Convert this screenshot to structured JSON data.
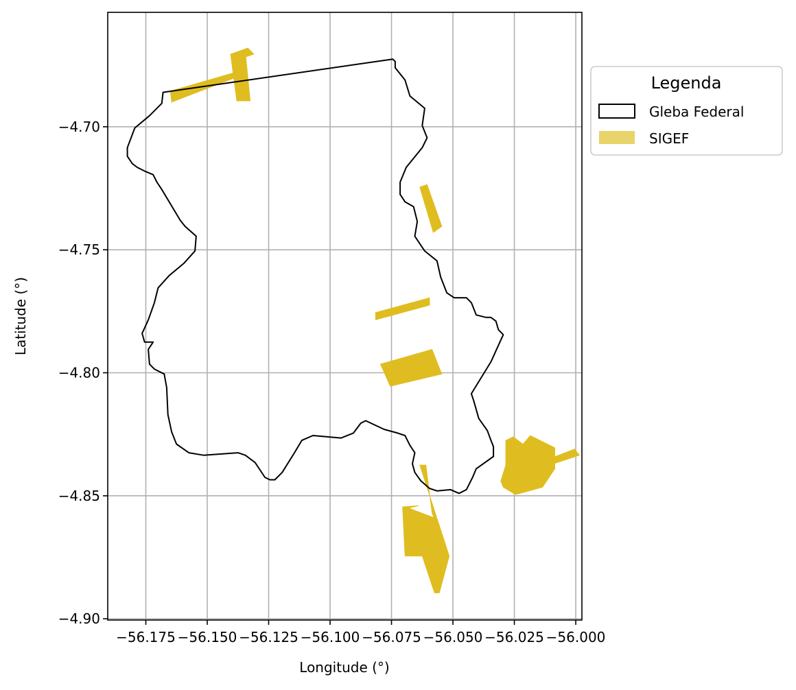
{
  "map": {
    "xlabel": "Longitude (°)",
    "ylabel": "Latitude (°)",
    "xlim": [
      -56.1905,
      -55.9975
    ],
    "ylim": [
      -4.9005,
      -4.6535
    ],
    "x_ticks": [
      {
        "value": -56.175,
        "label": "−56.175"
      },
      {
        "value": -56.15,
        "label": "−56.150"
      },
      {
        "value": -56.125,
        "label": "−56.125"
      },
      {
        "value": -56.1,
        "label": "−56.100"
      },
      {
        "value": -56.075,
        "label": "−56.075"
      },
      {
        "value": -56.05,
        "label": "−56.050"
      },
      {
        "value": -56.025,
        "label": "−56.025"
      },
      {
        "value": -56.0,
        "label": "−56.000"
      }
    ],
    "y_ticks": [
      {
        "value": -4.7,
        "label": "−4.70"
      },
      {
        "value": -4.75,
        "label": "−4.75"
      },
      {
        "value": -4.8,
        "label": "−4.80"
      },
      {
        "value": -4.85,
        "label": "−4.85"
      },
      {
        "value": -4.9,
        "label": "−4.90"
      }
    ],
    "grid": true,
    "legend": {
      "title": "Legenda",
      "placement": "outside-right-top",
      "entries": [
        {
          "label": "Gleba Federal",
          "style": "outline",
          "edge_color": "#000000",
          "fill_color": "#ffffff"
        },
        {
          "label": "SIGEF",
          "style": "fill",
          "fill_color": "#e8d46a"
        }
      ]
    },
    "colors": {
      "gleba_edge": "#000000",
      "sigef_fill": "#dfbd20",
      "grid": "#b0b0b0"
    }
  },
  "chart_data": {
    "type": "map",
    "layers": [
      {
        "name": "Gleba Federal",
        "geometry": "polygon",
        "coordinates": [
          [
            -56.168,
            -4.686
          ],
          [
            -56.0745,
            -4.6725
          ],
          [
            -56.0735,
            -4.6735
          ],
          [
            -56.0735,
            -4.676
          ],
          [
            -56.0695,
            -4.681
          ],
          [
            -56.0675,
            -4.6875
          ],
          [
            -56.0645,
            -4.69
          ],
          [
            -56.0615,
            -4.6925
          ],
          [
            -56.0625,
            -4.6995
          ],
          [
            -56.0605,
            -4.7045
          ],
          [
            -56.0625,
            -4.7085
          ],
          [
            -56.069,
            -4.7165
          ],
          [
            -56.0715,
            -4.7225
          ],
          [
            -56.0715,
            -4.7275
          ],
          [
            -56.0695,
            -4.7305
          ],
          [
            -56.066,
            -4.7325
          ],
          [
            -56.0645,
            -4.7385
          ],
          [
            -56.0655,
            -4.7445
          ],
          [
            -56.0615,
            -4.7505
          ],
          [
            -56.0565,
            -4.7545
          ],
          [
            -56.055,
            -4.761
          ],
          [
            -56.0525,
            -4.7675
          ],
          [
            -56.0495,
            -4.7695
          ],
          [
            -56.046,
            -4.7695
          ],
          [
            -56.0445,
            -4.7695
          ],
          [
            -56.0425,
            -4.7715
          ],
          [
            -56.0405,
            -4.7765
          ],
          [
            -56.0365,
            -4.7775
          ],
          [
            -56.0345,
            -4.7775
          ],
          [
            -56.0325,
            -4.779
          ],
          [
            -56.0315,
            -4.7825
          ],
          [
            -56.0295,
            -4.7845
          ],
          [
            -56.0345,
            -4.7955
          ],
          [
            -56.0425,
            -4.8085
          ],
          [
            -56.0415,
            -4.8115
          ],
          [
            -56.0395,
            -4.8185
          ],
          [
            -56.036,
            -4.8235
          ],
          [
            -56.0345,
            -4.8275
          ],
          [
            -56.0335,
            -4.83
          ],
          [
            -56.0335,
            -4.834
          ],
          [
            -56.0405,
            -4.839
          ],
          [
            -56.042,
            -4.8425
          ],
          [
            -56.0445,
            -4.8475
          ],
          [
            -56.0475,
            -4.849
          ],
          [
            -56.051,
            -4.8475
          ],
          [
            -56.0565,
            -4.848
          ],
          [
            -56.0595,
            -4.847
          ],
          [
            -56.063,
            -4.844
          ],
          [
            -56.0655,
            -4.8405
          ],
          [
            -56.0665,
            -4.837
          ],
          [
            -56.0655,
            -4.8325
          ],
          [
            -56.0675,
            -4.8295
          ],
          [
            -56.0695,
            -4.8255
          ],
          [
            -56.0725,
            -4.8245
          ],
          [
            -56.078,
            -4.823
          ],
          [
            -56.0855,
            -4.8195
          ],
          [
            -56.0875,
            -4.8205
          ],
          [
            -56.0905,
            -4.8245
          ],
          [
            -56.0955,
            -4.8265
          ],
          [
            -56.107,
            -4.8255
          ],
          [
            -56.1115,
            -4.8275
          ],
          [
            -56.1145,
            -4.8325
          ],
          [
            -56.1195,
            -4.8405
          ],
          [
            -56.1225,
            -4.8435
          ],
          [
            -56.1245,
            -4.8435
          ],
          [
            -56.1265,
            -4.8425
          ],
          [
            -56.1305,
            -4.8365
          ],
          [
            -56.1345,
            -4.8335
          ],
          [
            -56.1375,
            -4.8325
          ],
          [
            -56.1515,
            -4.8335
          ],
          [
            -56.1575,
            -4.8325
          ],
          [
            -56.1625,
            -4.829
          ],
          [
            -56.1645,
            -4.824
          ],
          [
            -56.166,
            -4.817
          ],
          [
            -56.1665,
            -4.806
          ],
          [
            -56.1675,
            -4.8005
          ],
          [
            -56.1715,
            -4.7985
          ],
          [
            -56.1735,
            -4.7965
          ],
          [
            -56.174,
            -4.7905
          ],
          [
            -56.172,
            -4.7875
          ],
          [
            -56.1755,
            -4.7875
          ],
          [
            -56.1765,
            -4.784
          ],
          [
            -56.174,
            -4.7785
          ],
          [
            -56.1715,
            -4.7715
          ],
          [
            -56.17,
            -4.7655
          ],
          [
            -56.1655,
            -4.7605
          ],
          [
            -56.1595,
            -4.7555
          ],
          [
            -56.155,
            -4.7505
          ],
          [
            -56.1545,
            -4.7445
          ],
          [
            -56.159,
            -4.7405
          ],
          [
            -56.161,
            -4.738
          ],
          [
            -56.1685,
            -4.7255
          ],
          [
            -56.1705,
            -4.7225
          ],
          [
            -56.172,
            -4.7195
          ],
          [
            -56.1755,
            -4.718
          ],
          [
            -56.1785,
            -4.7165
          ],
          [
            -56.1805,
            -4.715
          ],
          [
            -56.1825,
            -4.712
          ],
          [
            -56.1825,
            -4.7085
          ],
          [
            -56.1795,
            -4.7005
          ],
          [
            -56.1735,
            -4.6955
          ],
          [
            -56.1685,
            -4.6905
          ]
        ]
      },
      {
        "name": "SIGEF",
        "geometry": "multipolygon",
        "polygons": [
          [
            [
              -56.165,
              -4.6855
            ],
            [
              -56.139,
              -4.678
            ],
            [
              -56.1385,
              -4.68
            ],
            [
              -56.1645,
              -4.69
            ]
          ],
          [
            [
              -56.1405,
              -4.6705
            ],
            [
              -56.138,
              -4.6895
            ],
            [
              -56.1325,
              -4.6895
            ],
            [
              -56.1345,
              -4.6695
            ]
          ],
          [
            [
              -56.1405,
              -4.6705
            ],
            [
              -56.1335,
              -4.668
            ],
            [
              -56.131,
              -4.6705
            ],
            [
              -56.137,
              -4.6725
            ]
          ],
          [
            [
              -56.0635,
              -4.7245
            ],
            [
              -56.0605,
              -4.7235
            ],
            [
              -56.0545,
              -4.7405
            ],
            [
              -56.058,
              -4.743
            ]
          ],
          [
            [
              -56.0815,
              -4.7755
            ],
            [
              -56.0595,
              -4.7695
            ],
            [
              -56.0595,
              -4.7725
            ],
            [
              -56.0815,
              -4.7785
            ]
          ],
          [
            [
              -56.0795,
              -4.7965
            ],
            [
              -56.0585,
              -4.7905
            ],
            [
              -56.0545,
              -4.8005
            ],
            [
              -56.0755,
              -4.8055
            ]
          ],
          [
            [
              -56.0635,
              -4.8375
            ],
            [
              -56.061,
              -4.8375
            ],
            [
              -56.0585,
              -4.857
            ],
            [
              -56.0575,
              -4.8595
            ],
            [
              -56.0595,
              -4.862
            ],
            [
              -56.0575,
              -4.859
            ],
            [
              -56.068,
              -4.855
            ],
            [
              -56.064,
              -4.854
            ],
            [
              -56.0705,
              -4.8545
            ],
            [
              -56.0695,
              -4.8745
            ],
            [
              -56.0625,
              -4.8745
            ],
            [
              -56.0575,
              -4.8895
            ],
            [
              -56.0555,
              -4.8895
            ],
            [
              -56.0515,
              -4.8745
            ]
          ],
          [
            [
              -56.0285,
              -4.8275
            ],
            [
              -56.0285,
              -4.8375
            ],
            [
              -56.0305,
              -4.844
            ],
            [
              -56.0295,
              -4.8465
            ],
            [
              -56.0245,
              -4.8495
            ],
            [
              -56.0135,
              -4.8465
            ],
            [
              -56.0085,
              -4.839
            ],
            [
              -56.0085,
              -4.8305
            ],
            [
              -56.0185,
              -4.8255
            ],
            [
              -56.0215,
              -4.829
            ],
            [
              -56.0255,
              -4.826
            ]
          ],
          [
            [
              -56.0135,
              -4.836
            ],
            [
              -56.0005,
              -4.831
            ],
            [
              -55.9985,
              -4.8335
            ],
            [
              -56.0135,
              -4.8385
            ]
          ],
          [
            [
              -56.0215,
              -4.829
            ],
            [
              -56.0165,
              -4.827
            ],
            [
              -56.0175,
              -4.831
            ],
            [
              -56.0205,
              -4.831
            ]
          ]
        ]
      }
    ]
  }
}
